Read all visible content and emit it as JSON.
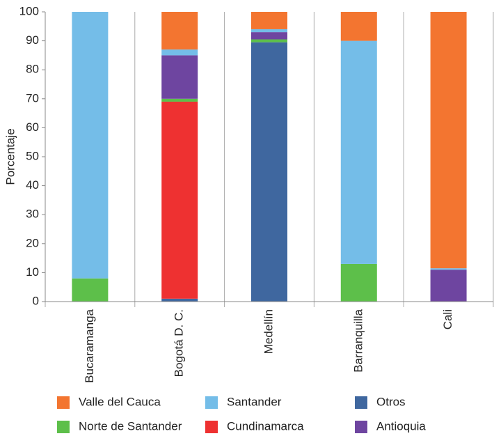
{
  "chart_data": {
    "type": "stacked-bar",
    "y_label": "Porcentaje",
    "categories": [
      "Bucaramanga",
      "Bogotá D. C.",
      "Medellín",
      "Barranquilla",
      "Cali"
    ],
    "series": [
      {
        "name": "Otros",
        "color": "#3f679f",
        "values": [
          0,
          1,
          89.5,
          0,
          0
        ]
      },
      {
        "name": "Cundinamarca",
        "color": "#ee3131",
        "values": [
          0,
          68,
          0,
          0,
          0
        ]
      },
      {
        "name": "Norte de Santander",
        "color": "#5dbf4a",
        "values": [
          8,
          1,
          1,
          13,
          0
        ]
      },
      {
        "name": "Antioquia",
        "color": "#6e45a0",
        "values": [
          0,
          15,
          2.5,
          0,
          11
        ]
      },
      {
        "name": "Santander",
        "color": "#74bde8",
        "values": [
          92,
          2,
          1,
          77,
          0.5
        ]
      },
      {
        "name": "Valle del Cauca",
        "color": "#f37530",
        "values": [
          0,
          13,
          6,
          10,
          88.5
        ]
      }
    ],
    "ylim": [
      0,
      100
    ],
    "yticks": [
      0,
      10,
      20,
      30,
      40,
      50,
      60,
      70,
      80,
      90,
      100
    ],
    "grid": true
  }
}
